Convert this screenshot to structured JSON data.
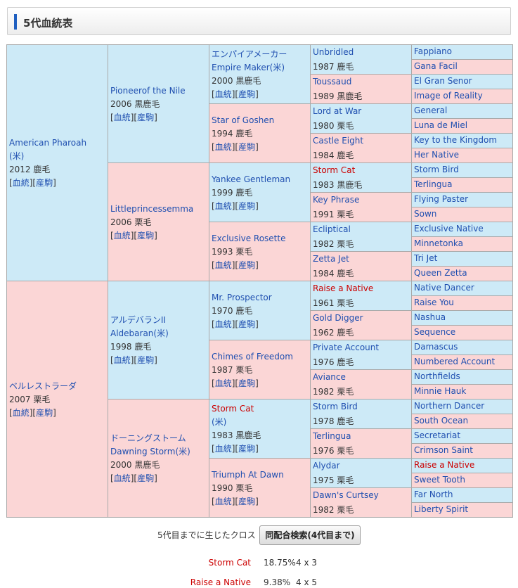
{
  "header": {
    "title": "5代血統表"
  },
  "pedigree": {
    "link_pedigree": "血統",
    "link_progeny": "産駒",
    "gen1": [
      {
        "lines": [
          "American Pharoah",
          "(米)"
        ],
        "info": "2012 鹿毛",
        "links": true
      },
      {
        "lines": [
          "ベルレストラーダ"
        ],
        "info": "2007 栗毛",
        "links": true
      }
    ],
    "gen2": [
      {
        "lines": [
          "Pioneerof the Nile"
        ],
        "info": "2006 黒鹿毛",
        "links": true
      },
      {
        "lines": [
          "Littleprincessemma"
        ],
        "info": "2006 栗毛",
        "links": true
      },
      {
        "lines": [
          "アルデバランII",
          "Aldebaran(米)"
        ],
        "info": "1998 鹿毛",
        "links": true
      },
      {
        "lines": [
          "ドーニングストーム",
          "Dawning Storm(米)"
        ],
        "info": "2000 黒鹿毛",
        "links": true
      }
    ],
    "gen3": [
      {
        "lines": [
          "エンパイアメーカー",
          "Empire Maker(米)"
        ],
        "info": "2000 黒鹿毛",
        "links": true
      },
      {
        "lines": [
          "Star of Goshen"
        ],
        "info": "1994 鹿毛",
        "links": true
      },
      {
        "lines": [
          "Yankee Gentleman"
        ],
        "info": "1999 鹿毛",
        "links": true
      },
      {
        "lines": [
          "Exclusive Rosette"
        ],
        "info": "1993 栗毛",
        "links": true
      },
      {
        "lines": [
          "Mr. Prospector"
        ],
        "info": "1970 鹿毛",
        "links": true
      },
      {
        "lines": [
          "Chimes of Freedom"
        ],
        "info": "1987 栗毛",
        "links": true
      },
      {
        "lines": [
          "Storm Cat",
          "(米)"
        ],
        "info": "1983 黒鹿毛",
        "links": true,
        "red": true
      },
      {
        "lines": [
          "Triumph At Dawn"
        ],
        "info": "1990 栗毛",
        "links": true
      }
    ],
    "gen4": [
      {
        "name": "Unbridled",
        "info": "1987 鹿毛"
      },
      {
        "name": "Toussaud",
        "info": "1989 黒鹿毛"
      },
      {
        "name": "Lord at War",
        "info": "1980 栗毛"
      },
      {
        "name": "Castle Eight",
        "info": "1984 鹿毛"
      },
      {
        "name": "Storm Cat",
        "info": "1983 黒鹿毛",
        "red": true
      },
      {
        "name": "Key Phrase",
        "info": "1991 栗毛"
      },
      {
        "name": "Ecliptical",
        "info": "1982 栗毛"
      },
      {
        "name": "Zetta Jet",
        "info": "1984 鹿毛"
      },
      {
        "name": "Raise a Native",
        "info": "1961 栗毛",
        "red": true
      },
      {
        "name": "Gold Digger",
        "info": "1962 鹿毛"
      },
      {
        "name": "Private Account",
        "info": "1976 鹿毛"
      },
      {
        "name": "Aviance",
        "info": "1982 栗毛"
      },
      {
        "name": "Storm Bird",
        "info": "1978 鹿毛"
      },
      {
        "name": "Terlingua",
        "info": "1976 栗毛"
      },
      {
        "name": "Alydar",
        "info": "1975 栗毛"
      },
      {
        "name": "Dawn's Curtsey",
        "info": "1982 栗毛"
      }
    ],
    "gen5": [
      {
        "name": "Fappiano"
      },
      {
        "name": "Gana Facil"
      },
      {
        "name": "El Gran Senor"
      },
      {
        "name": "Image of Reality"
      },
      {
        "name": "General"
      },
      {
        "name": "Luna de Miel"
      },
      {
        "name": "Key to the Kingdom"
      },
      {
        "name": "Her Native"
      },
      {
        "name": "Storm Bird"
      },
      {
        "name": "Terlingua"
      },
      {
        "name": "Flying Paster"
      },
      {
        "name": "Sown"
      },
      {
        "name": "Exclusive Native"
      },
      {
        "name": "Minnetonka"
      },
      {
        "name": "Tri Jet"
      },
      {
        "name": "Queen Zetta"
      },
      {
        "name": "Native Dancer"
      },
      {
        "name": "Raise You"
      },
      {
        "name": "Nashua"
      },
      {
        "name": "Sequence"
      },
      {
        "name": "Damascus"
      },
      {
        "name": "Numbered Account"
      },
      {
        "name": "Northfields"
      },
      {
        "name": "Minnie Hauk"
      },
      {
        "name": "Northern Dancer"
      },
      {
        "name": "South Ocean"
      },
      {
        "name": "Secretariat"
      },
      {
        "name": "Crimson Saint"
      },
      {
        "name": "Raise a Native",
        "red": true
      },
      {
        "name": "Sweet Tooth"
      },
      {
        "name": "Far North"
      },
      {
        "name": "Liberty Spirit"
      }
    ]
  },
  "cross": {
    "label": "5代目までに生じたクロス",
    "button": "同配合検索(4代目まで)",
    "rows": [
      {
        "name": "Storm Cat",
        "percent": "18.75%",
        "gen": "4 x 3"
      },
      {
        "name": "Raise a Native",
        "percent": "9.38%",
        "gen": "4 x 5"
      }
    ]
  }
}
